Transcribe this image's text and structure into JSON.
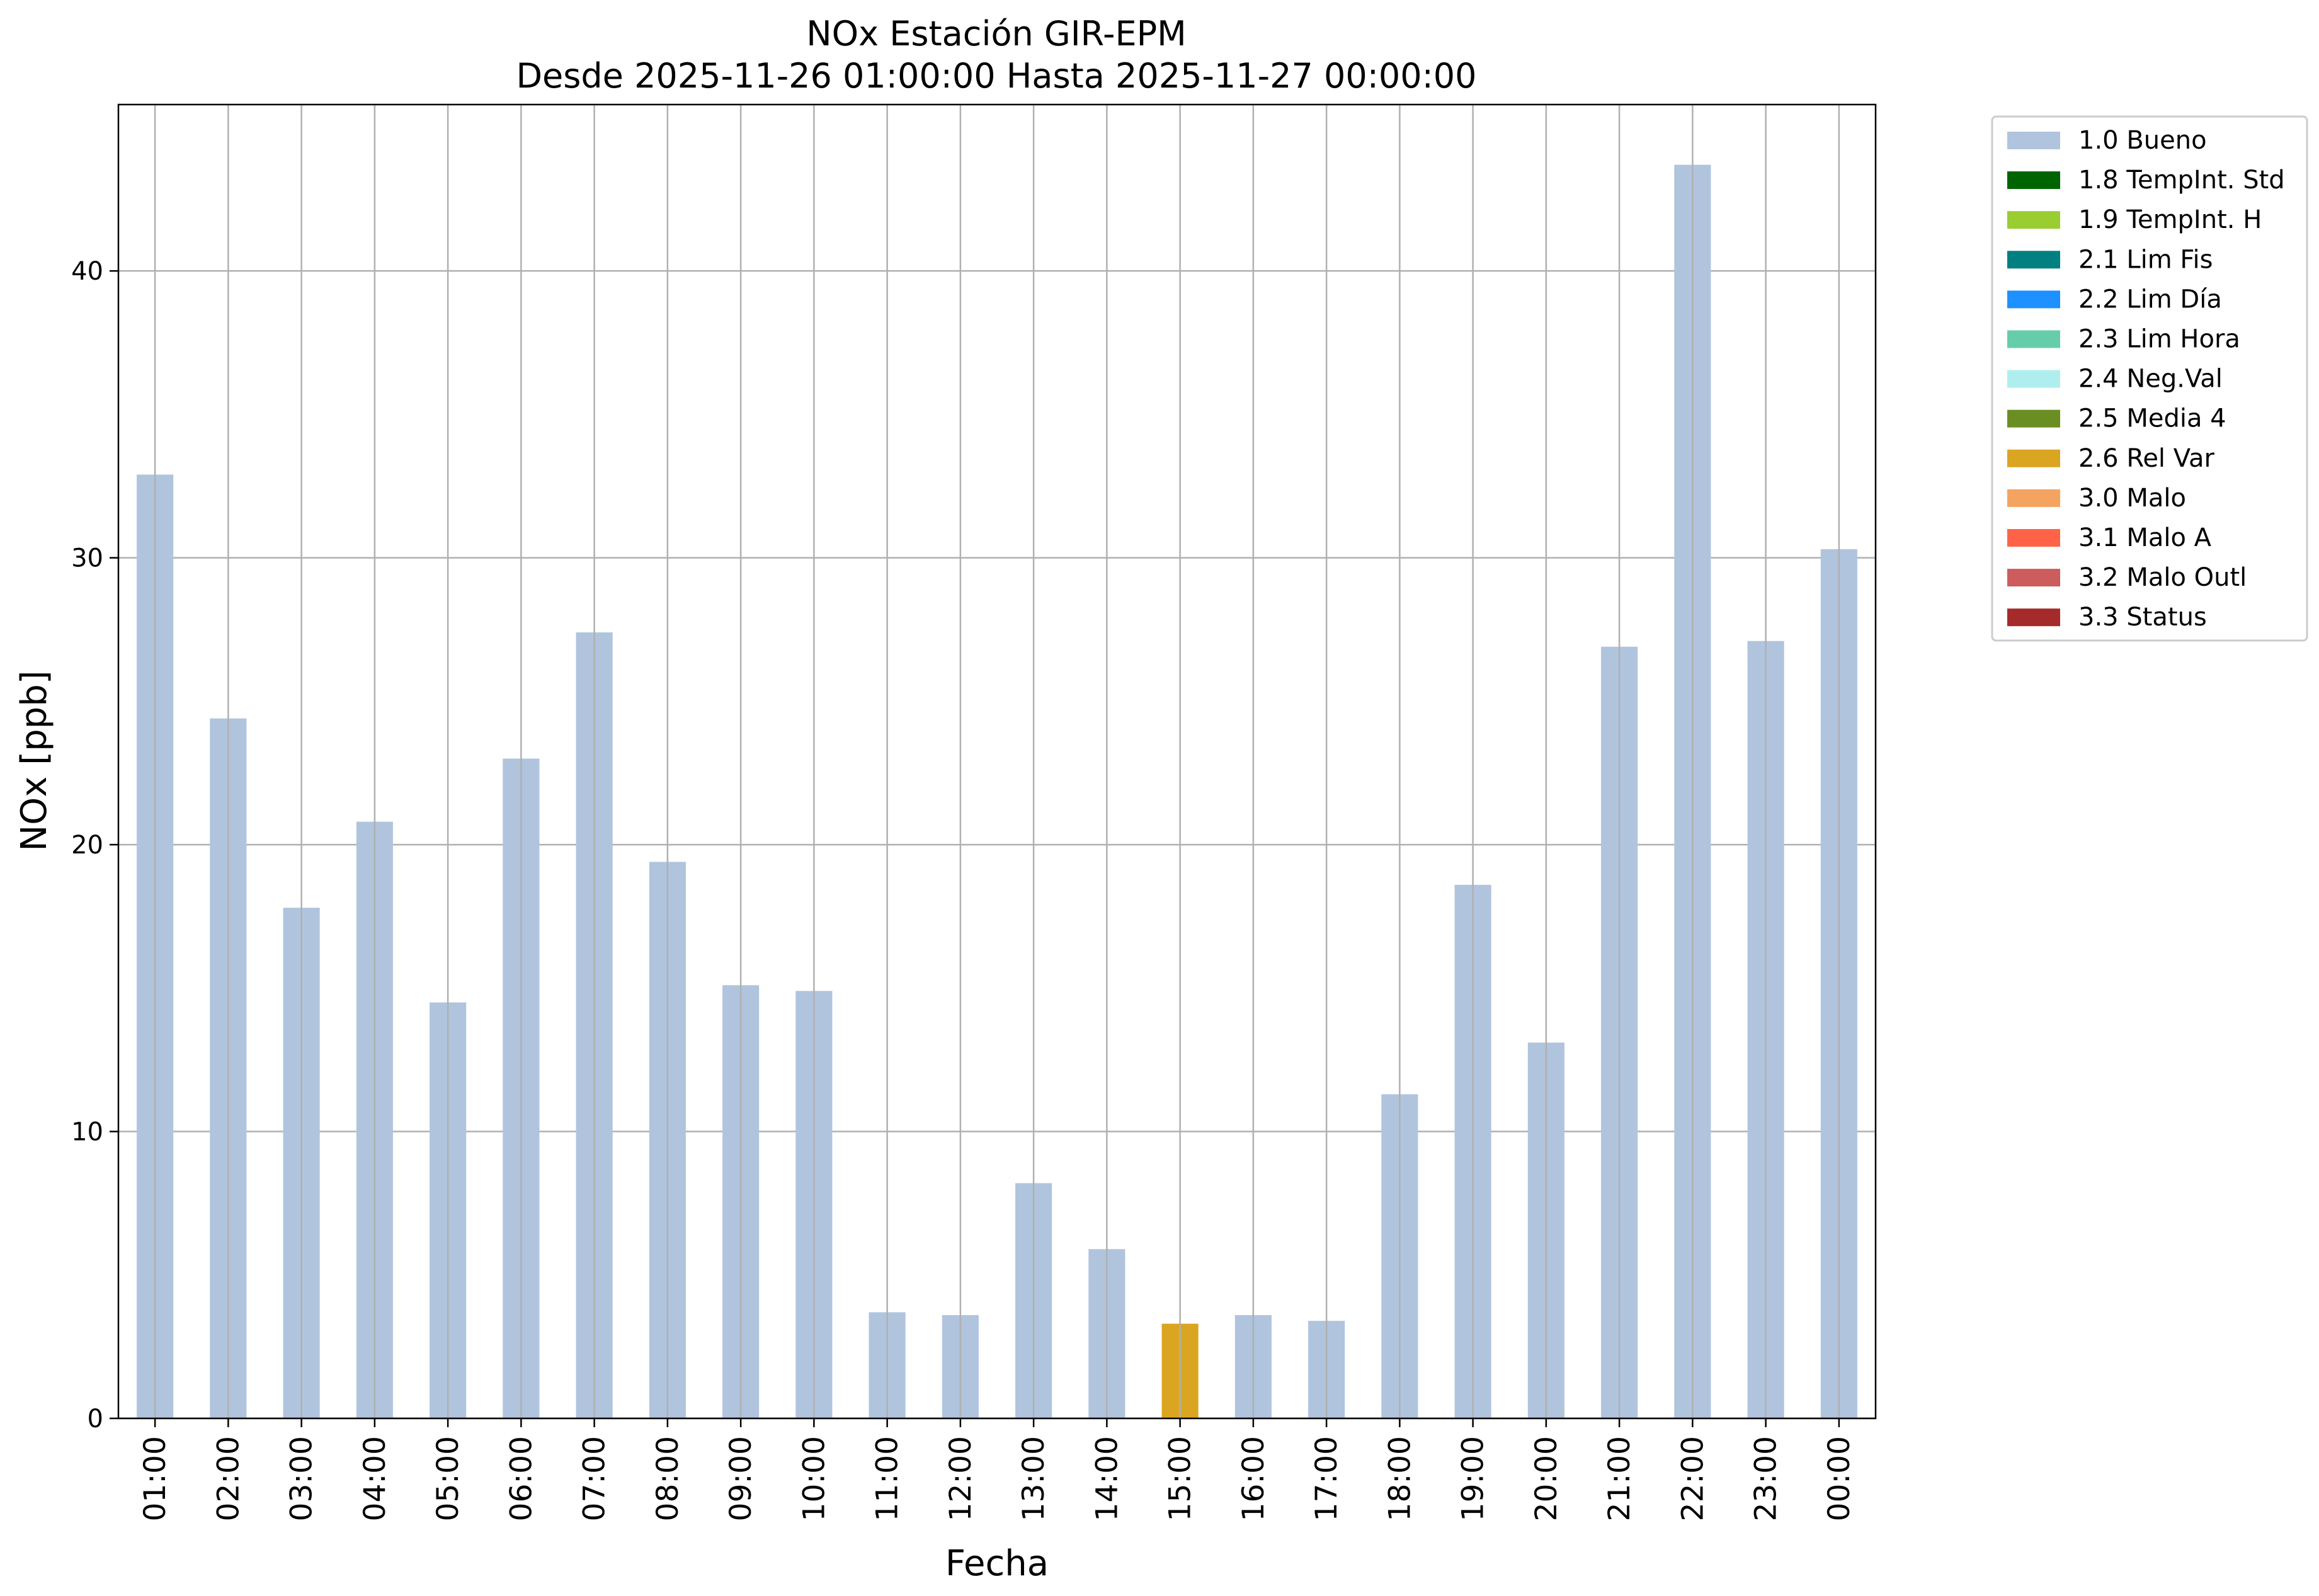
{
  "chart_data": {
    "type": "bar",
    "title_line1": "NOx Estación GIR-EPM",
    "title_line2": "Desde 2025-11-26 01:00:00 Hasta 2025-11-27 00:00:00",
    "xlabel": "Fecha",
    "ylabel": "NOx [ppb]",
    "ylim": [
      0,
      45.8
    ],
    "yticks": [
      "0",
      "10",
      "20",
      "30",
      "40"
    ],
    "grid": true,
    "legend_position": "outside-right",
    "categories": [
      "01:00",
      "02:00",
      "03:00",
      "04:00",
      "05:00",
      "06:00",
      "07:00",
      "08:00",
      "09:00",
      "10:00",
      "11:00",
      "12:00",
      "13:00",
      "14:00",
      "15:00",
      "16:00",
      "17:00",
      "18:00",
      "19:00",
      "20:00",
      "21:00",
      "22:00",
      "23:00",
      "00:00"
    ],
    "values": [
      32.9,
      24.4,
      17.8,
      20.8,
      14.5,
      23.0,
      27.4,
      19.4,
      15.1,
      14.9,
      3.7,
      3.6,
      8.2,
      5.9,
      3.3,
      3.6,
      3.4,
      11.3,
      18.6,
      13.1,
      26.9,
      43.7,
      27.1,
      30.3
    ],
    "flags": [
      "1.0 Bueno",
      "1.0 Bueno",
      "1.0 Bueno",
      "1.0 Bueno",
      "1.0 Bueno",
      "1.0 Bueno",
      "1.0 Bueno",
      "1.0 Bueno",
      "1.0 Bueno",
      "1.0 Bueno",
      "1.0 Bueno",
      "1.0 Bueno",
      "1.0 Bueno",
      "1.0 Bueno",
      "2.6 Rel Var",
      "1.0 Bueno",
      "1.0 Bueno",
      "1.0 Bueno",
      "1.0 Bueno",
      "1.0 Bueno",
      "1.0 Bueno",
      "1.0 Bueno",
      "1.0 Bueno",
      "1.0 Bueno"
    ],
    "legend": [
      {
        "label": "1.0 Bueno",
        "color": "#b0c4de"
      },
      {
        "label": "1.8 TempInt. Std",
        "color": "#006400"
      },
      {
        "label": "1.9 TempInt. H",
        "color": "#9acd32"
      },
      {
        "label": "2.1 Lim Fis",
        "color": "#008080"
      },
      {
        "label": "2.2 Lim Día",
        "color": "#1e90ff"
      },
      {
        "label": "2.3 Lim Hora",
        "color": "#66cdaa"
      },
      {
        "label": "2.4 Neg.Val",
        "color": "#afeeee"
      },
      {
        "label": "2.5 Media 4",
        "color": "#6b8e23"
      },
      {
        "label": "2.6 Rel Var",
        "color": "#daa520"
      },
      {
        "label": "3.0 Malo",
        "color": "#f4a460"
      },
      {
        "label": "3.1 Malo A",
        "color": "#ff6347"
      },
      {
        "label": "3.2 Malo Outl",
        "color": "#cd5c5c"
      },
      {
        "label": "3.3 Status",
        "color": "#a52a2a"
      }
    ]
  }
}
